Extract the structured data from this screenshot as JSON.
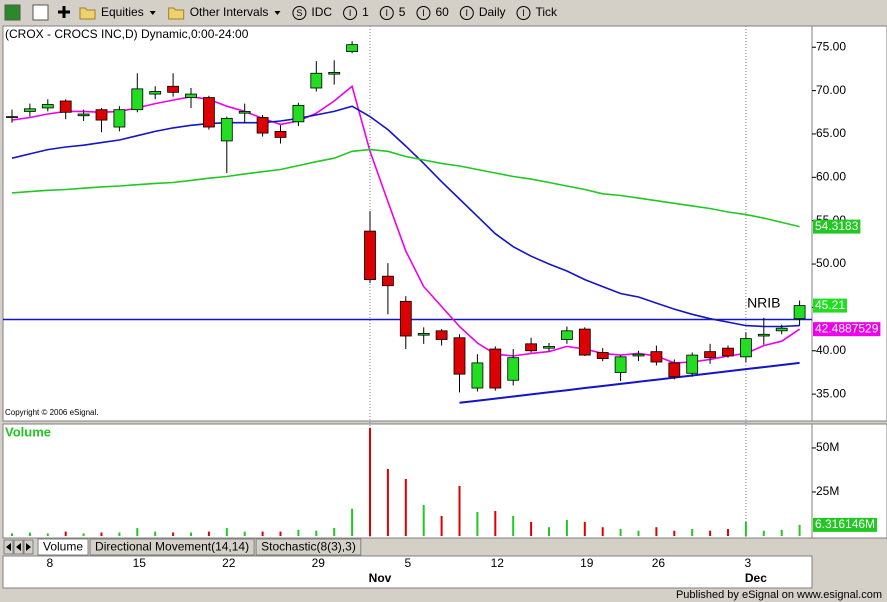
{
  "toolbar": {
    "buttons": [
      {
        "label": "Equities"
      },
      {
        "label": "Other Intervals"
      },
      {
        "icon": "S",
        "label": "IDC"
      },
      {
        "icon": "I",
        "label": "1"
      },
      {
        "icon": "I",
        "label": "5"
      },
      {
        "icon": "I",
        "label": "60"
      },
      {
        "icon": "I",
        "label": "Daily"
      },
      {
        "icon": "I",
        "label": "Tick"
      }
    ]
  },
  "chart_data": [
    {
      "type": "candlestick",
      "title": "(CROX - CROCS INC,D) Dynamic,0:00-24:00",
      "copyright": "Copyright © 2006 eSignal.",
      "categories": [
        null,
        null,
        "8",
        null,
        null,
        null,
        null,
        "15",
        null,
        null,
        null,
        null,
        "22",
        null,
        null,
        null,
        null,
        "29",
        null,
        null,
        null,
        null,
        "5",
        null,
        null,
        null,
        null,
        "12",
        null,
        null,
        null,
        null,
        "19",
        null,
        null,
        null,
        "26",
        null,
        null,
        null,
        null,
        "3",
        null,
        null,
        null
      ],
      "month_labels": [
        null,
        null,
        null,
        null,
        null,
        null,
        null,
        null,
        null,
        null,
        null,
        null,
        null,
        null,
        null,
        null,
        null,
        null,
        null,
        null,
        "Nov",
        null,
        null,
        null,
        null,
        null,
        null,
        null,
        null,
        null,
        null,
        null,
        null,
        null,
        null,
        null,
        null,
        null,
        null,
        null,
        null,
        "Dec",
        null,
        null,
        null
      ],
      "open": [
        66.9,
        67.6,
        68.0,
        68.8,
        67.1,
        67.8,
        65.8,
        67.8,
        69.6,
        70.5,
        69.2,
        69.2,
        64.2,
        67.4,
        66.9,
        65.3,
        66.4,
        70.3,
        71.9,
        74.5,
        53.8,
        48.6,
        45.7,
        41.8,
        42.3,
        41.5,
        35.7,
        40.2,
        36.6,
        40.8,
        40.3,
        41.3,
        42.5,
        39.8,
        37.5,
        39.4,
        39.9,
        38.6,
        37.4,
        39.9,
        40.3,
        39.3,
        41.7,
        42.3,
        43.7
      ],
      "high": [
        67.8,
        68.5,
        69.0,
        69.0,
        67.8,
        68.0,
        68.2,
        72.0,
        70.5,
        72.0,
        70.3,
        69.4,
        67.0,
        68.5,
        67.2,
        66.0,
        68.6,
        73.4,
        73.5,
        75.7,
        56.1,
        50.1,
        46.3,
        42.7,
        42.5,
        41.9,
        39.6,
        40.5,
        40.2,
        41.5,
        40.9,
        42.8,
        42.7,
        40.3,
        39.5,
        40.0,
        40.6,
        39.0,
        39.8,
        40.8,
        40.6,
        42.1,
        43.8,
        43.0,
        45.8
      ],
      "low": [
        66.3,
        67.0,
        67.6,
        66.7,
        66.5,
        65.2,
        65.3,
        67.5,
        69.0,
        69.3,
        68.0,
        65.5,
        60.5,
        66.2,
        64.7,
        63.9,
        65.9,
        69.9,
        70.7,
        74.3,
        47.8,
        44.2,
        40.2,
        40.8,
        40.6,
        35.2,
        35.3,
        35.4,
        36.0,
        39.8,
        39.9,
        40.8,
        39.4,
        38.8,
        36.5,
        38.8,
        38.3,
        36.7,
        37.0,
        38.5,
        39.2,
        38.7,
        40.7,
        41.9,
        42.9
      ],
      "close": [
        67.0,
        67.9,
        68.4,
        67.5,
        67.3,
        66.6,
        67.8,
        70.2,
        69.9,
        69.8,
        69.6,
        65.8,
        66.8,
        67.6,
        65.1,
        64.6,
        68.3,
        72.0,
        72.1,
        75.3,
        48.2,
        47.5,
        41.7,
        42.0,
        41.3,
        37.3,
        38.6,
        35.7,
        39.2,
        40.0,
        40.5,
        42.3,
        39.5,
        39.1,
        39.3,
        39.6,
        38.7,
        37.0,
        39.5,
        39.2,
        39.4,
        41.4,
        41.9,
        42.6,
        45.21
      ],
      "up_color": "#22dd22",
      "down_color": "#dd0000",
      "overlays": [
        {
          "color": "#ee00ee",
          "values": [
            66.6,
            66.9,
            67.3,
            67.6,
            67.6,
            67.5,
            67.6,
            68.0,
            68.5,
            68.9,
            69.3,
            69.0,
            68.2,
            67.6,
            66.8,
            66.1,
            66.5,
            67.4,
            68.8,
            70.5,
            63.0,
            57.2,
            51.5,
            47.4,
            45.1,
            42.8,
            40.9,
            39.6,
            39.4,
            39.7,
            39.9,
            40.5,
            40.2,
            39.7,
            39.5,
            39.7,
            39.4,
            38.6,
            38.7,
            39.0,
            39.4,
            39.7,
            40.6,
            41.1,
            42.4887529
          ]
        },
        {
          "color": "#1414c8",
          "values": [
            62.2,
            62.7,
            63.2,
            63.5,
            63.7,
            64.0,
            64.3,
            64.8,
            65.3,
            65.7,
            66.0,
            66.2,
            66.3,
            66.3,
            66.3,
            66.5,
            66.8,
            67.2,
            67.6,
            68.2,
            67.0,
            65.5,
            63.6,
            61.6,
            59.5,
            57.5,
            55.5,
            53.5,
            52.0,
            50.9,
            50.0,
            49.2,
            48.2,
            47.4,
            46.6,
            46.2,
            45.5,
            44.8,
            44.2,
            43.7,
            43.3,
            42.9,
            42.8,
            42.8,
            42.9
          ]
        },
        {
          "color": "#22c822",
          "values": [
            58.2,
            58.35,
            58.5,
            58.6,
            58.75,
            58.9,
            59.0,
            59.15,
            59.3,
            59.4,
            59.65,
            59.9,
            60.1,
            60.4,
            60.65,
            60.9,
            61.35,
            61.8,
            62.2,
            63.0,
            63.2,
            63.0,
            62.4,
            62.0,
            61.6,
            61.3,
            60.9,
            60.5,
            60.1,
            59.8,
            59.4,
            59.0,
            58.6,
            58.1,
            57.9,
            57.6,
            57.3,
            57.0,
            56.7,
            56.4,
            56.0,
            55.7,
            55.3,
            54.8,
            54.3183
          ]
        }
      ],
      "trendline": {
        "color": "#1414c8",
        "values": [
          null,
          null,
          null,
          null,
          null,
          null,
          null,
          null,
          null,
          null,
          null,
          null,
          null,
          null,
          null,
          null,
          null,
          null,
          null,
          null,
          null,
          null,
          null,
          null,
          null,
          34.0,
          34.24,
          34.48,
          34.73,
          34.97,
          35.21,
          35.45,
          35.7,
          35.94,
          36.18,
          36.42,
          36.66,
          36.91,
          37.15,
          37.39,
          37.63,
          37.88,
          38.12,
          38.36,
          38.6
        ]
      },
      "reference_lines": [
        {
          "value": 43.6,
          "color": "#1414c8"
        }
      ],
      "annotations": [
        {
          "text": "NRIB"
        }
      ],
      "ylim": [
        31.9,
        77.45
      ],
      "yticks": [
        {
          "value": 35,
          "label": "35.00"
        },
        {
          "value": 40,
          "label": "40.00"
        },
        {
          "value": 45,
          "label": "45.00"
        },
        {
          "value": 50,
          "label": "50.00"
        },
        {
          "value": 55,
          "label": "55.00"
        },
        {
          "value": 60,
          "label": "60.00"
        },
        {
          "value": 65,
          "label": "65.00"
        },
        {
          "value": 70,
          "label": "70.00"
        },
        {
          "value": 75,
          "label": "75.00"
        }
      ]
    },
    {
      "type": "bar",
      "title": "Volume",
      "values": [
        1.5,
        2.0,
        1.5,
        2.5,
        1.5,
        2.0,
        2.0,
        4.5,
        2.5,
        2.0,
        2.0,
        2.5,
        4.5,
        2.5,
        2.5,
        2.5,
        3.5,
        3.0,
        4.5,
        15.5,
        61.4,
        38.1,
        32.4,
        17.6,
        11.4,
        28.4,
        13.6,
        14.2,
        11.4,
        8.0,
        5.0,
        9.1,
        8.0,
        5.0,
        4.0,
        3.0,
        5.0,
        3.0,
        4.0,
        3.0,
        4.0,
        8.0,
        3.0,
        3.5,
        6.316146
      ],
      "value_labels": [
        null,
        null,
        null,
        null,
        null,
        null,
        null,
        null,
        null,
        null,
        null,
        null,
        null,
        null,
        null,
        null,
        null,
        null,
        null,
        null,
        null,
        null,
        null,
        null,
        null,
        null,
        null,
        null,
        null,
        null,
        null,
        null,
        null,
        null,
        null,
        null,
        null,
        null,
        null,
        null,
        null,
        null,
        null,
        null,
        "6.316146M"
      ],
      "colors": [
        "#22c822",
        "#22c822",
        "#22c822",
        "#dd0000",
        "#22c822",
        "#dd0000",
        "#22c822",
        "#22c822",
        "#22c822",
        "#dd0000",
        "#22c822",
        "#dd0000",
        "#22c822",
        "#22c822",
        "#dd0000",
        "#dd0000",
        "#22c822",
        "#22c822",
        "#22c822",
        "#22c822",
        "#dd0000",
        "#dd0000",
        "#dd0000",
        "#22c822",
        "#dd0000",
        "#dd0000",
        "#22c822",
        "#dd0000",
        "#22c822",
        "#dd0000",
        "#22c822",
        "#22c822",
        "#dd0000",
        "#dd0000",
        "#22c822",
        "#22c822",
        "#dd0000",
        "#dd0000",
        "#22c822",
        "#dd0000",
        "#dd0000",
        "#22c822",
        "#22c822",
        "#22c822",
        "#22c822"
      ],
      "ylim": [
        0,
        63.6
      ],
      "yticks": [
        {
          "value": 25,
          "label": "25M"
        },
        {
          "value": 50,
          "label": "50M"
        }
      ]
    }
  ],
  "tabs": [
    "Volume",
    "Directional Movement(14,14)",
    "Stochastic(8(3),3)"
  ],
  "footer": "Published by eSignal on www.esignal.com"
}
